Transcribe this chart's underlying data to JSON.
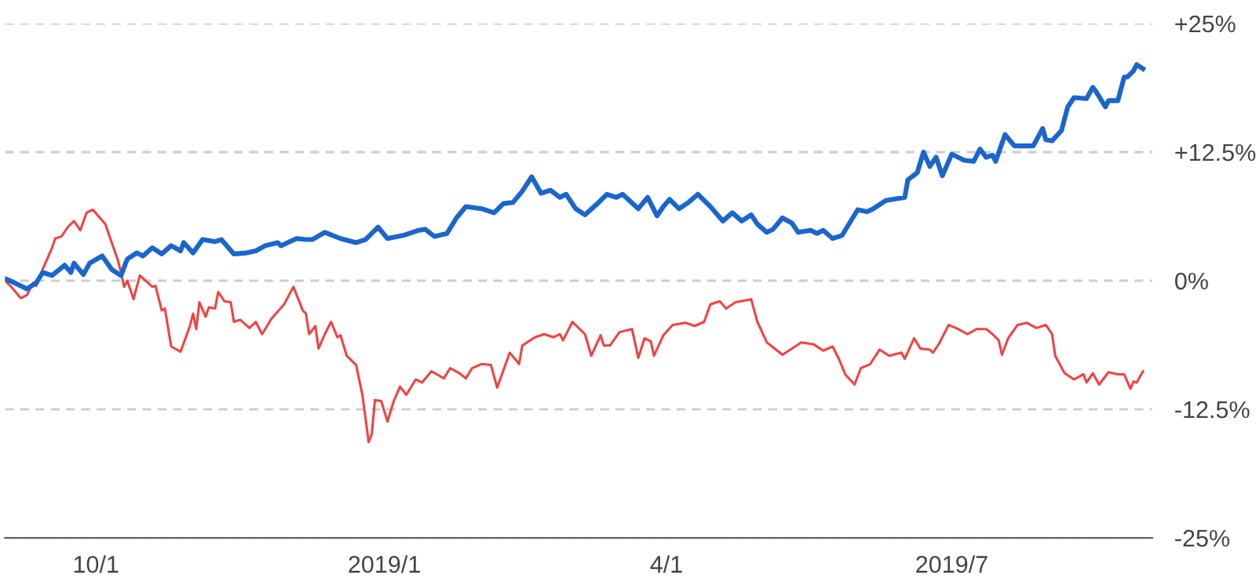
{
  "chart_data": {
    "type": "line",
    "xlim": [
      "2018-09-02",
      "2019-09-03"
    ],
    "xticks": [
      {
        "value": "2018-10-01",
        "label": "10/1"
      },
      {
        "value": "2019-01-01",
        "label": "2019/1"
      },
      {
        "value": "2019-04-01",
        "label": "4/1"
      },
      {
        "value": "2019-07-01",
        "label": "2019/7"
      }
    ],
    "ylim": [
      -25,
      25
    ],
    "yticks": [
      {
        "value": -25,
        "label": "-25%"
      },
      {
        "value": -12.5,
        "label": "-12.5%"
      },
      {
        "value": 0,
        "label": "0%"
      },
      {
        "value": 12.5,
        "label": "+12.5%"
      },
      {
        "value": 25,
        "label": "+25%"
      }
    ],
    "grid": "y",
    "marker": "none",
    "line_style": "solid",
    "series": [
      {
        "color": "#1a66cc",
        "x": [
          "2018-09-02",
          "2018-09-05",
          "2018-09-09",
          "2018-09-12",
          "2018-09-14",
          "2018-09-17",
          "2018-09-21",
          "2018-09-23",
          "2018-09-24",
          "2018-09-27",
          "2018-09-29",
          "2018-10-03",
          "2018-10-06",
          "2018-10-09",
          "2018-10-11",
          "2018-10-14",
          "2018-10-16",
          "2018-10-19",
          "2018-10-22",
          "2018-10-25",
          "2018-10-28",
          "2018-10-29",
          "2018-11-01",
          "2018-11-04",
          "2018-11-08",
          "2018-11-10",
          "2018-11-14",
          "2018-11-18",
          "2018-11-21",
          "2018-11-24",
          "2018-11-28",
          "2018-11-29",
          "2018-12-04",
          "2018-12-07",
          "2018-12-09",
          "2018-12-13",
          "2018-12-18",
          "2018-12-23",
          "2018-12-26",
          "2018-12-28",
          "2018-12-30",
          "2019-01-02",
          "2019-01-07",
          "2019-01-12",
          "2019-01-14",
          "2019-01-17",
          "2019-01-21",
          "2019-01-24",
          "2019-01-27",
          "2019-02-01",
          "2019-02-05",
          "2019-02-08",
          "2019-02-11",
          "2019-02-14",
          "2019-02-17",
          "2019-02-20",
          "2019-02-23",
          "2019-02-26",
          "2019-02-28",
          "2019-03-03",
          "2019-03-06",
          "2019-03-10",
          "2019-03-13",
          "2019-03-16",
          "2019-03-18",
          "2019-03-23",
          "2019-03-26",
          "2019-03-29",
          "2019-03-31",
          "2019-04-02",
          "2019-04-05",
          "2019-04-08",
          "2019-04-11",
          "2019-04-15",
          "2019-04-19",
          "2019-04-22",
          "2019-04-25",
          "2019-04-28",
          "2019-04-30",
          "2019-05-03",
          "2019-05-05",
          "2019-05-08",
          "2019-05-11",
          "2019-05-13",
          "2019-05-17",
          "2019-05-19",
          "2019-05-21",
          "2019-05-24",
          "2019-05-27",
          "2019-06-01",
          "2019-06-04",
          "2019-06-06",
          "2019-06-10",
          "2019-06-16",
          "2019-06-17",
          "2019-06-20",
          "2019-06-22",
          "2019-06-24",
          "2019-06-26",
          "2019-06-28",
          "2019-07-01",
          "2019-07-05",
          "2019-07-08",
          "2019-07-10",
          "2019-07-12",
          "2019-07-14",
          "2019-07-15",
          "2019-07-18",
          "2019-07-21",
          "2019-07-24",
          "2019-07-27",
          "2019-07-30",
          "2019-07-31",
          "2019-08-02",
          "2019-08-05",
          "2019-08-07",
          "2019-08-09",
          "2019-08-13",
          "2019-08-15",
          "2019-08-16",
          "2019-08-19",
          "2019-08-20",
          "2019-08-23",
          "2019-08-25",
          "2019-08-26",
          "2019-08-28",
          "2019-08-29",
          "2019-08-31"
        ],
        "values": [
          0.2,
          -0.2,
          -0.8,
          -0.2,
          0.8,
          0.5,
          1.5,
          0.8,
          1.7,
          0.6,
          1.7,
          2.4,
          1.1,
          0.5,
          2.1,
          2.7,
          2.4,
          3.2,
          2.6,
          3.4,
          2.9,
          3.7,
          2.7,
          4.0,
          3.8,
          4.0,
          2.6,
          2.7,
          2.9,
          3.4,
          3.7,
          3.4,
          4.1,
          4.0,
          4.0,
          4.7,
          4.1,
          3.7,
          4.0,
          4.6,
          5.2,
          4.1,
          4.4,
          4.9,
          5.0,
          4.3,
          4.6,
          6.1,
          7.2,
          7.0,
          6.6,
          7.5,
          7.6,
          8.7,
          10.1,
          8.5,
          8.8,
          8.1,
          8.4,
          7.0,
          6.4,
          7.5,
          8.4,
          8.1,
          8.4,
          7.0,
          8.1,
          6.3,
          7.2,
          7.9,
          7.0,
          7.6,
          8.4,
          7.2,
          5.8,
          6.6,
          5.8,
          6.4,
          5.5,
          4.7,
          5.0,
          6.1,
          5.6,
          4.7,
          4.9,
          4.6,
          4.9,
          4.1,
          4.4,
          6.9,
          6.7,
          7.0,
          7.8,
          8.1,
          9.8,
          10.5,
          12.5,
          11.1,
          12.0,
          10.2,
          12.3,
          11.7,
          11.6,
          12.8,
          12.0,
          12.2,
          11.6,
          14.2,
          13.1,
          13.1,
          13.1,
          14.8,
          13.7,
          13.6,
          14.6,
          16.9,
          17.8,
          17.7,
          18.8,
          18.4,
          16.9,
          17.5,
          17.5,
          19.8,
          19.8,
          20.4,
          21.0,
          20.6
        ]
      },
      {
        "color": "#ee4444",
        "x": [
          "2018-09-02",
          "2018-09-04",
          "2018-09-07",
          "2018-09-09",
          "2018-09-11",
          "2018-09-12",
          "2018-09-14",
          "2018-09-17",
          "2018-09-18",
          "2018-09-20",
          "2018-09-22",
          "2018-09-24",
          "2018-09-26",
          "2018-09-28",
          "2018-09-30",
          "2018-10-04",
          "2018-10-05",
          "2018-10-08",
          "2018-10-09",
          "2018-10-10",
          "2018-10-11",
          "2018-10-13",
          "2018-10-15",
          "2018-10-19",
          "2018-10-20",
          "2018-10-22",
          "2018-10-23",
          "2018-10-25",
          "2018-10-28",
          "2018-10-31",
          "2018-11-01",
          "2018-11-02",
          "2018-11-03",
          "2018-11-05",
          "2018-11-06",
          "2018-11-08",
          "2018-11-09",
          "2018-11-11",
          "2018-11-13",
          "2018-11-14",
          "2018-11-16",
          "2018-11-19",
          "2018-11-21",
          "2018-11-23",
          "2018-11-26",
          "2018-11-30",
          "2018-12-03",
          "2018-12-06",
          "2018-12-07",
          "2018-12-08",
          "2018-12-10",
          "2018-12-11",
          "2018-12-13",
          "2018-12-15",
          "2018-12-17",
          "2018-12-18",
          "2018-12-20",
          "2018-12-23",
          "2018-12-25",
          "2018-12-27",
          "2018-12-28",
          "2018-12-29",
          "2018-12-31",
          "2019-01-02",
          "2019-01-04",
          "2019-01-06",
          "2019-01-08",
          "2019-01-11",
          "2019-01-13",
          "2019-01-16",
          "2019-01-20",
          "2019-01-22",
          "2019-01-25",
          "2019-01-27",
          "2019-01-29",
          "2019-02-01",
          "2019-02-04",
          "2019-02-06",
          "2019-02-10",
          "2019-02-13",
          "2019-02-14",
          "2019-02-18",
          "2019-02-21",
          "2019-02-24",
          "2019-02-26",
          "2019-02-27",
          "2019-03-02",
          "2019-03-06",
          "2019-03-08",
          "2019-03-11",
          "2019-03-12",
          "2019-03-14",
          "2019-03-17",
          "2019-03-21",
          "2019-03-23",
          "2019-03-25",
          "2019-03-27",
          "2019-03-28",
          "2019-03-31",
          "2019-04-03",
          "2019-04-07",
          "2019-04-10",
          "2019-04-13",
          "2019-04-15",
          "2019-04-18",
          "2019-04-20",
          "2019-04-23",
          "2019-04-28",
          "2019-04-30",
          "2019-05-03",
          "2019-05-08",
          "2019-05-12",
          "2019-05-14",
          "2019-05-18",
          "2019-05-21",
          "2019-05-24",
          "2019-05-26",
          "2019-05-28",
          "2019-05-31",
          "2019-06-02",
          "2019-06-05",
          "2019-06-08",
          "2019-06-11",
          "2019-06-15",
          "2019-06-16",
          "2019-06-19",
          "2019-06-21",
          "2019-06-24",
          "2019-06-25",
          "2019-06-27",
          "2019-06-30",
          "2019-07-03",
          "2019-07-06",
          "2019-07-09",
          "2019-07-12",
          "2019-07-14",
          "2019-07-16",
          "2019-07-17",
          "2019-07-19",
          "2019-07-22",
          "2019-07-25",
          "2019-07-28",
          "2019-07-31",
          "2019-08-02",
          "2019-08-03",
          "2019-08-06",
          "2019-08-09",
          "2019-08-12",
          "2019-08-13",
          "2019-08-15",
          "2019-08-17",
          "2019-08-20",
          "2019-08-23",
          "2019-08-25",
          "2019-08-27",
          "2019-08-28",
          "2019-08-29",
          "2019-08-31"
        ],
        "values": [
          0.0,
          -0.6,
          -1.7,
          -1.4,
          -0.2,
          -0.5,
          1.1,
          3.2,
          4.1,
          4.3,
          5.2,
          5.8,
          4.9,
          6.6,
          6.9,
          5.5,
          4.6,
          2.0,
          0.8,
          -0.6,
          0.0,
          -1.8,
          0.5,
          -0.6,
          -0.5,
          -2.9,
          -2.7,
          -6.4,
          -6.9,
          -4.4,
          -3.2,
          -4.7,
          -2.1,
          -3.5,
          -2.6,
          -2.7,
          -1.1,
          -2.0,
          -2.1,
          -4.0,
          -3.8,
          -4.6,
          -4.0,
          -5.2,
          -3.7,
          -2.3,
          -0.6,
          -2.9,
          -3.2,
          -5.2,
          -4.4,
          -6.6,
          -5.2,
          -4.0,
          -5.5,
          -5.3,
          -7.3,
          -8.2,
          -11.1,
          -15.7,
          -14.9,
          -11.6,
          -11.7,
          -13.7,
          -11.7,
          -10.3,
          -11.1,
          -9.6,
          -9.9,
          -8.8,
          -9.5,
          -8.5,
          -9.0,
          -9.5,
          -8.5,
          -8.1,
          -8.2,
          -10.4,
          -7.0,
          -8.1,
          -6.3,
          -5.5,
          -5.2,
          -5.5,
          -5.2,
          -5.8,
          -4.0,
          -5.2,
          -7.3,
          -5.3,
          -6.3,
          -6.3,
          -5.0,
          -4.7,
          -7.5,
          -5.6,
          -5.9,
          -7.3,
          -5.3,
          -4.3,
          -4.1,
          -4.4,
          -4.0,
          -2.3,
          -2.0,
          -2.7,
          -2.1,
          -1.8,
          -4.0,
          -6.0,
          -7.2,
          -6.4,
          -6.0,
          -6.2,
          -6.8,
          -6.4,
          -7.6,
          -9.1,
          -10.1,
          -8.5,
          -8.1,
          -6.7,
          -7.3,
          -7.0,
          -7.6,
          -5.6,
          -6.6,
          -6.7,
          -7.0,
          -6.1,
          -4.3,
          -4.7,
          -5.2,
          -4.7,
          -4.7,
          -5.2,
          -5.8,
          -7.2,
          -5.6,
          -4.3,
          -4.1,
          -4.6,
          -4.3,
          -5.2,
          -7.3,
          -9.0,
          -9.6,
          -9.1,
          -9.9,
          -9.0,
          -10.1,
          -8.9,
          -9.1,
          -9.1,
          -10.5,
          -9.8,
          -9.9,
          -8.8
        ]
      }
    ]
  }
}
